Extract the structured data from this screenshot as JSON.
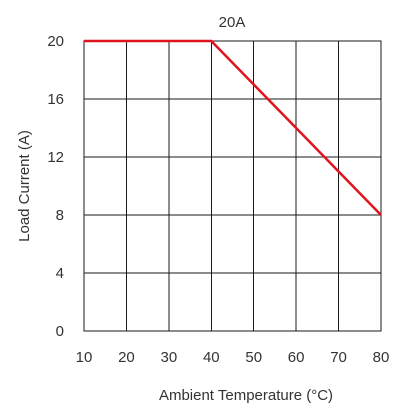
{
  "chart_data": {
    "type": "line",
    "title": "20A",
    "xlabel": "Ambient Temperature (°C)",
    "ylabel": "Load Current (A)",
    "xlim": [
      10,
      80
    ],
    "ylim": [
      0,
      20
    ],
    "x_ticks": [
      "10",
      "20",
      "30",
      "40",
      "50",
      "60",
      "70",
      "80"
    ],
    "y_ticks": [
      "0",
      "4",
      "8",
      "12",
      "16",
      "20"
    ],
    "grid": true,
    "series": [
      {
        "color": "#e0141e",
        "x": [
          10,
          40,
          80
        ],
        "y": [
          20,
          20,
          8
        ]
      }
    ]
  }
}
